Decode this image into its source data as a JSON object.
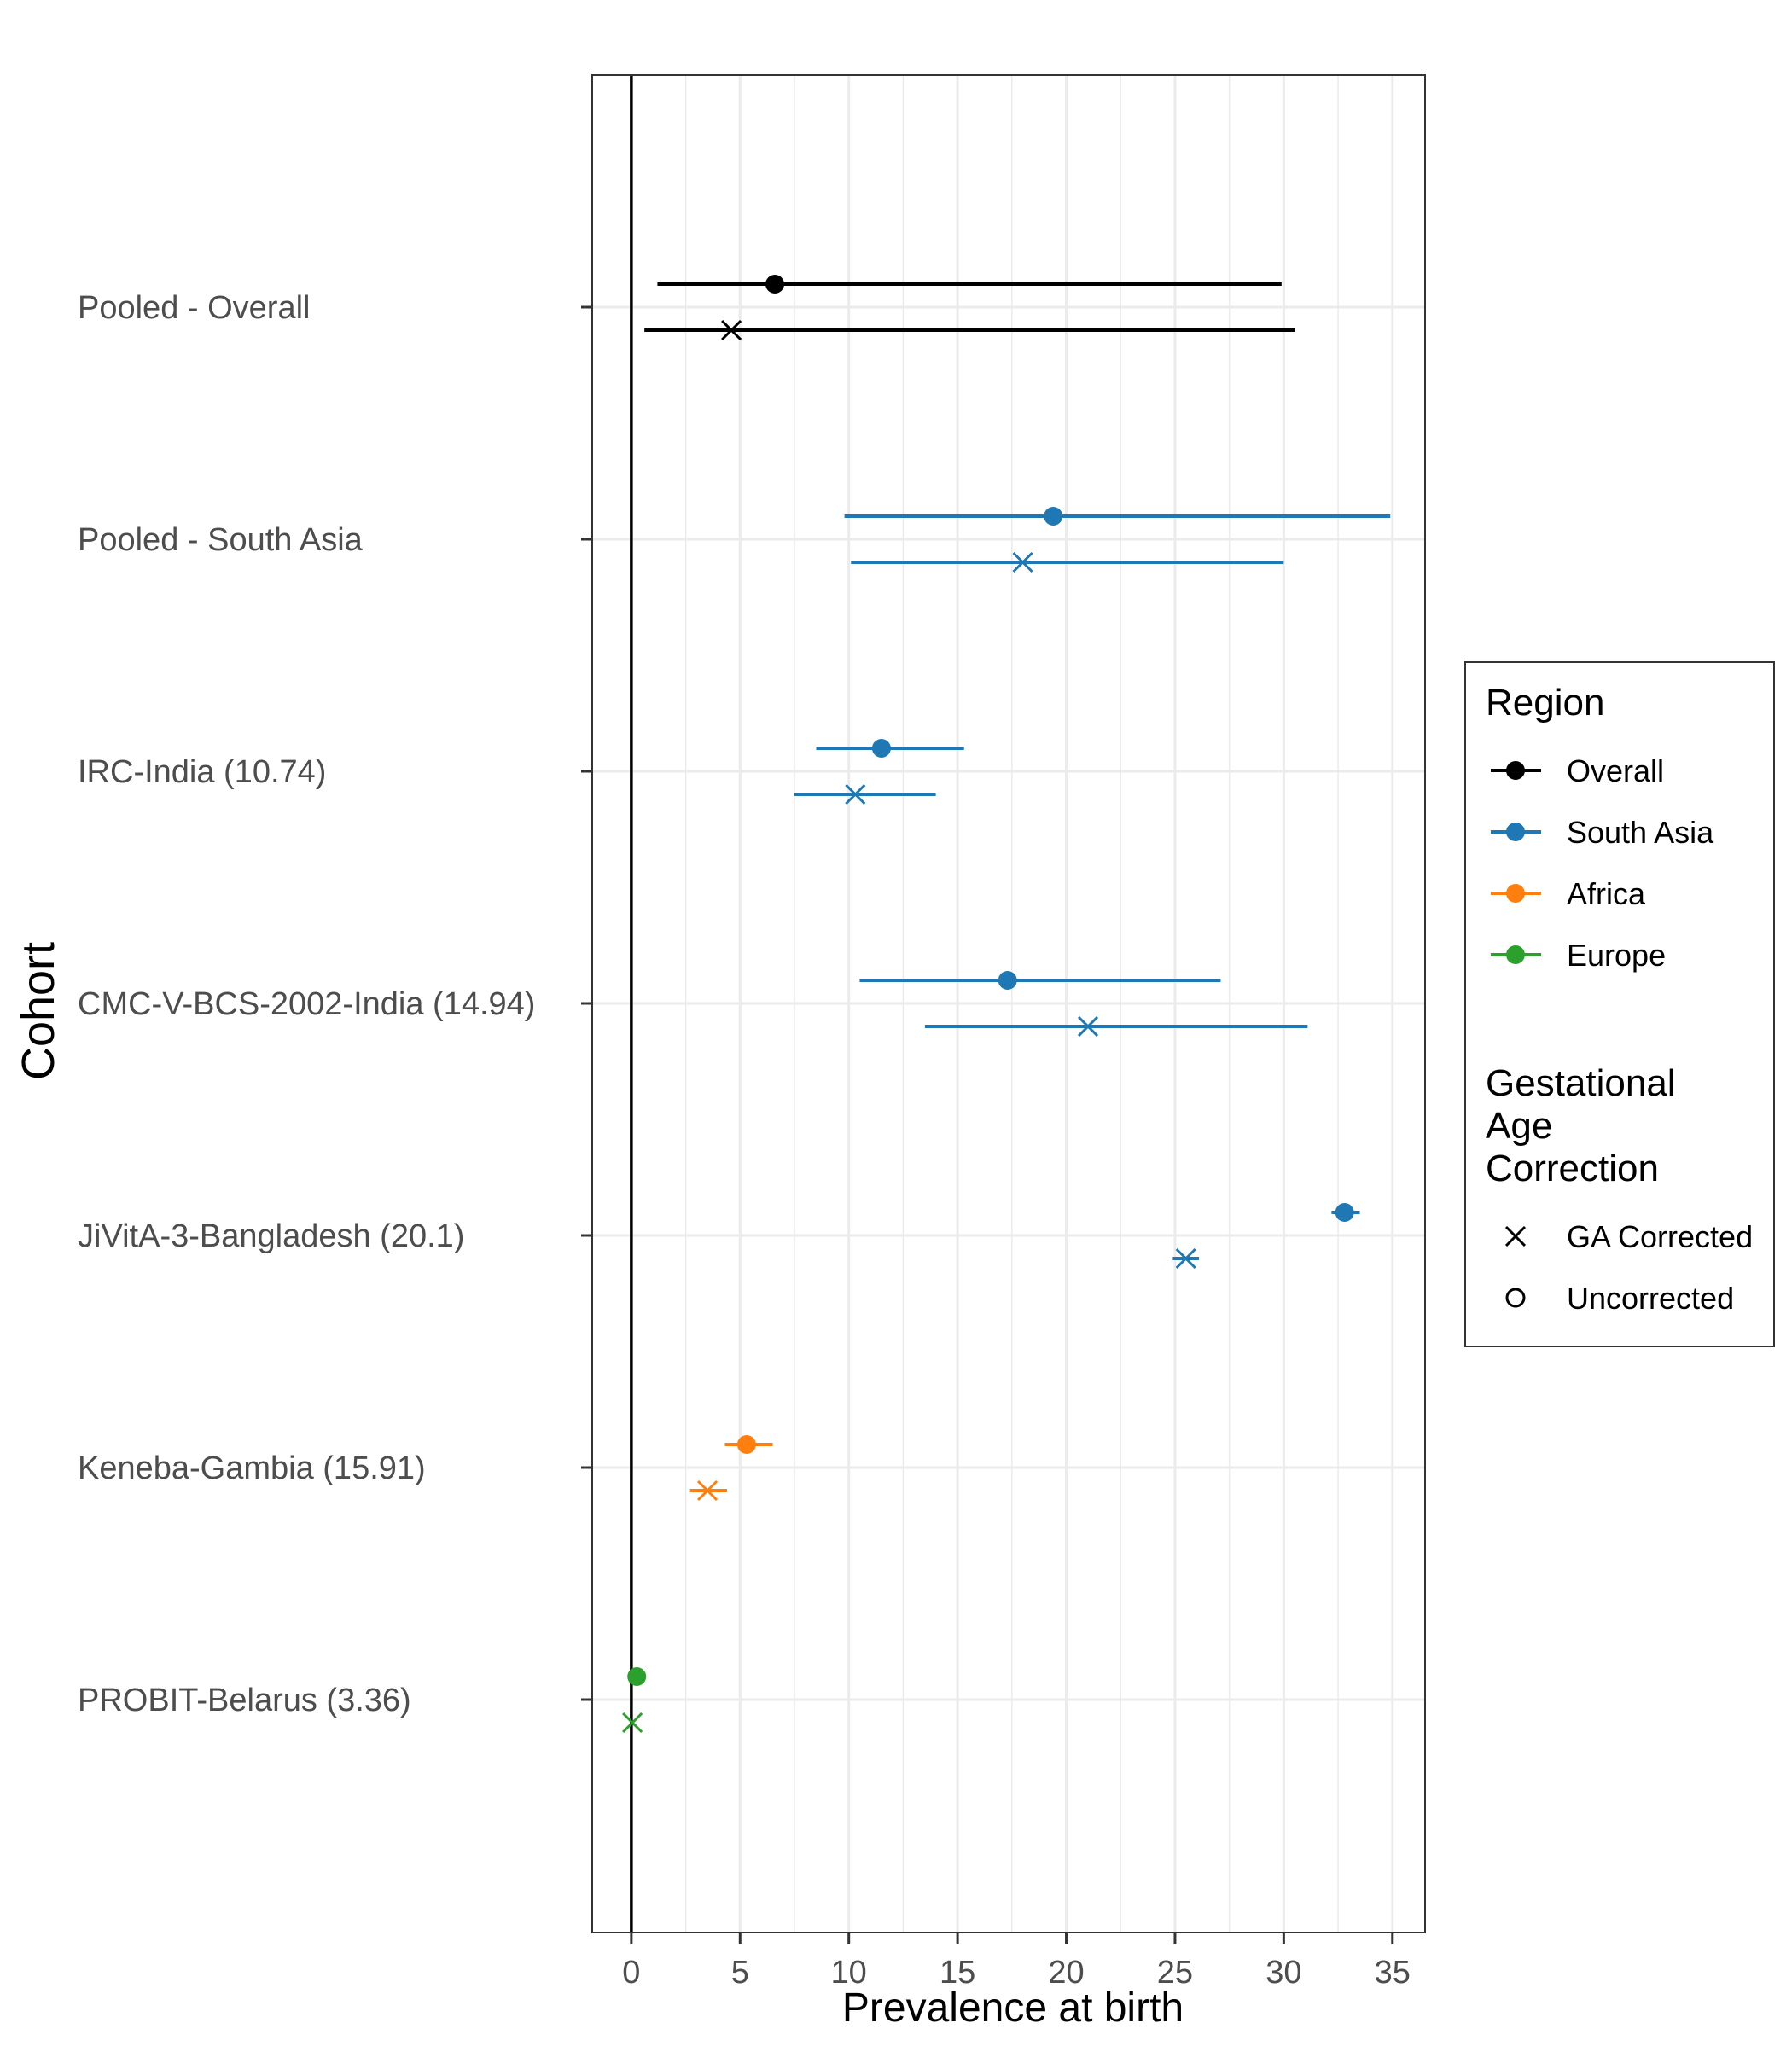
{
  "chart_data": {
    "type": "forest",
    "xlabel": "Prevalence at birth",
    "ylabel": "Cohort",
    "xlim": [
      -1.8,
      36.5
    ],
    "x_ticks": [
      0,
      5,
      10,
      15,
      20,
      25,
      30,
      35
    ],
    "grid": true,
    "reference_line_x": 0,
    "categories": [
      "Pooled - Overall",
      "Pooled - South Asia",
      "IRC-India (10.74)",
      "CMC-V-BCS-2002-India (14.94)",
      "JiVitA-3-Bangladesh (20.1)",
      "Keneba-Gambia (15.91)",
      "PROBIT-Belarus (3.36)"
    ],
    "rows": [
      {
        "cohort": "Pooled - Overall",
        "region": "Overall",
        "uncorrected": {
          "est": 6.6,
          "lo": 1.2,
          "hi": 29.9
        },
        "ga_corrected": {
          "est": 4.6,
          "lo": 0.6,
          "hi": 30.5
        }
      },
      {
        "cohort": "Pooled - South Asia",
        "region": "South Asia",
        "uncorrected": {
          "est": 19.4,
          "lo": 9.8,
          "hi": 34.9
        },
        "ga_corrected": {
          "est": 18.0,
          "lo": 10.1,
          "hi": 30.0
        }
      },
      {
        "cohort": "IRC-India (10.74)",
        "region": "South Asia",
        "uncorrected": {
          "est": 11.5,
          "lo": 8.5,
          "hi": 15.3
        },
        "ga_corrected": {
          "est": 10.3,
          "lo": 7.5,
          "hi": 14.0
        }
      },
      {
        "cohort": "CMC-V-BCS-2002-India (14.94)",
        "region": "South Asia",
        "uncorrected": {
          "est": 17.3,
          "lo": 10.5,
          "hi": 27.1
        },
        "ga_corrected": {
          "est": 21.0,
          "lo": 13.5,
          "hi": 31.1
        }
      },
      {
        "cohort": "JiVitA-3-Bangladesh (20.1)",
        "region": "South Asia",
        "uncorrected": {
          "est": 32.8,
          "lo": 32.2,
          "hi": 33.5
        },
        "ga_corrected": {
          "est": 25.5,
          "lo": 24.9,
          "hi": 26.1
        }
      },
      {
        "cohort": "Keneba-Gambia (15.91)",
        "region": "Africa",
        "uncorrected": {
          "est": 5.3,
          "lo": 4.3,
          "hi": 6.5
        },
        "ga_corrected": {
          "est": 3.5,
          "lo": 2.7,
          "hi": 4.4
        }
      },
      {
        "cohort": "PROBIT-Belarus (3.36)",
        "region": "Europe",
        "uncorrected": {
          "est": 0.25,
          "lo": 0.2,
          "hi": 0.3
        },
        "ga_corrected": {
          "est": 0.05,
          "lo": 0.0,
          "hi": 0.1
        }
      }
    ],
    "legend": {
      "placement": "right",
      "region_title": "Region",
      "regions": [
        {
          "name": "Overall",
          "color": "#000000"
        },
        {
          "name": "South Asia",
          "color": "#1f77b4"
        },
        {
          "name": "Africa",
          "color": "#ff7f0e"
        },
        {
          "name": "Europe",
          "color": "#2ca02c"
        }
      ],
      "ga_title_lines": [
        "Gestational",
        "Age",
        "Correction"
      ],
      "ga_items": [
        {
          "name": "GA Corrected",
          "shape": "x-mark"
        },
        {
          "name": "Uncorrected",
          "shape": "circle"
        }
      ]
    }
  }
}
